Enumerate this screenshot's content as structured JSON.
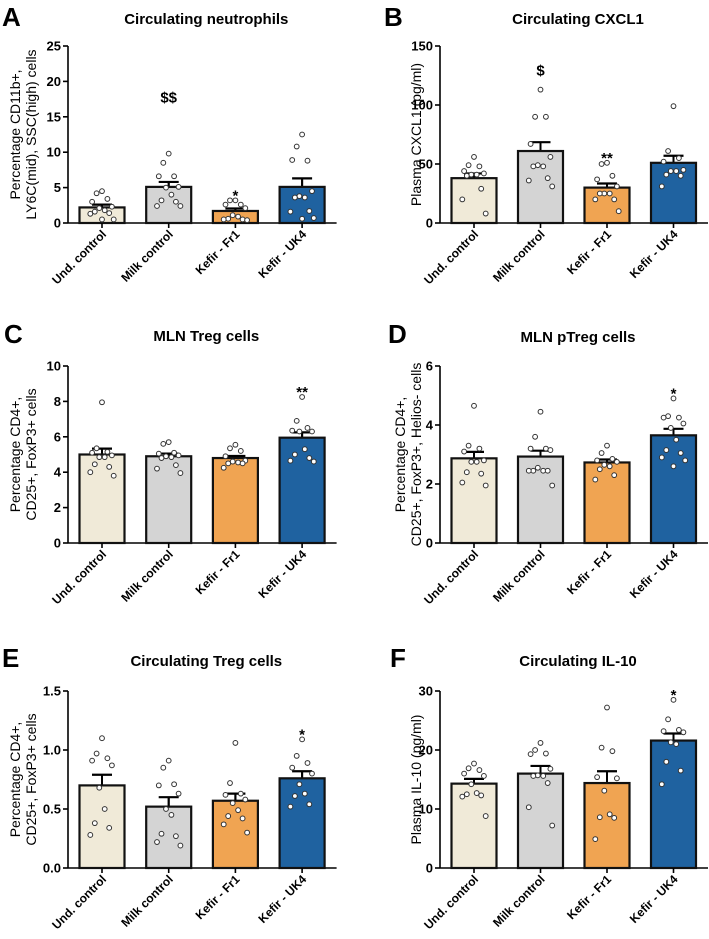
{
  "chart_data": [
    {
      "type": "bar",
      "panel": "A",
      "title": "Circulating neutrophils",
      "ylabel": [
        "Percentage CD11b+,",
        "LY6C(mid), SSC(high) cells"
      ],
      "xlabel": "",
      "ylim": [
        0,
        25
      ],
      "yticks": [
        0,
        5,
        10,
        15,
        20,
        25
      ],
      "categories": [
        "Und. control",
        "Milk control",
        "Kefir - Fr1",
        "Kefir - UK4"
      ],
      "values": [
        2.2,
        5.1,
        1.7,
        5.1
      ],
      "sem": [
        0.4,
        0.7,
        0.35,
        1.2
      ],
      "points": [
        [
          4.5,
          4.2,
          3.4,
          3.0,
          2.3,
          2.1,
          1.8,
          1.6,
          1.4,
          1.3,
          0.5,
          0.5
        ],
        [
          9.8,
          8.5,
          6.6,
          6.6,
          5.1,
          5.0,
          4.0,
          3.2,
          3.0,
          2.4,
          2.4
        ],
        [
          3.2,
          3.2,
          2.6,
          2.6,
          2.1,
          1.1,
          0.9,
          0.6,
          0.5,
          0.5,
          0.4
        ],
        [
          12.5,
          10.8,
          8.8,
          8.9,
          4.5,
          3.8,
          3.6,
          3.6,
          1.7,
          1.6,
          0.7,
          0.6
        ]
      ],
      "annotations": [
        "",
        "$$",
        "*",
        ""
      ],
      "colors": [
        "#F0EAD8",
        "#D4D4D4",
        "#F0A452",
        "#1F62A0"
      ],
      "grid": false
    },
    {
      "type": "bar",
      "panel": "B",
      "title": "Circulating CXCL1",
      "ylabel": [
        "Plasma CXCL1 (pg/ml)"
      ],
      "xlabel": "",
      "ylim": [
        0,
        150
      ],
      "yticks": [
        0,
        50,
        100,
        150
      ],
      "categories": [
        "Und. control",
        "Milk control",
        "Kefir - Fr1",
        "Kefir - UK4"
      ],
      "values": [
        38,
        61,
        30,
        51
      ],
      "sem": [
        4,
        7.5,
        3.5,
        6
      ],
      "points": [
        [
          56,
          49,
          48,
          44,
          42,
          41,
          41,
          40,
          29,
          20,
          8
        ],
        [
          113,
          90,
          90,
          67,
          56,
          49,
          48,
          48,
          38,
          36,
          31
        ],
        [
          51,
          50,
          40,
          37,
          31,
          25,
          25,
          25,
          20,
          20,
          10
        ],
        [
          99,
          61,
          55,
          52,
          45,
          44,
          44,
          41,
          40,
          31
        ]
      ],
      "annotations": [
        "",
        "$",
        "**",
        ""
      ],
      "colors": [
        "#F0EAD8",
        "#D4D4D4",
        "#F0A452",
        "#1F62A0"
      ],
      "grid": false
    },
    {
      "type": "bar",
      "panel": "C",
      "title": "MLN Treg cells",
      "ylabel": [
        "Percentage CD4+,",
        "CD25+, FoxP3+ cells"
      ],
      "xlabel": "",
      "ylim": [
        0,
        10
      ],
      "yticks": [
        0,
        2,
        4,
        6,
        8,
        10
      ],
      "categories": [
        "Und. control",
        "Milk control",
        "Kefir - Fr1",
        "Kefir - UK4"
      ],
      "values": [
        5.0,
        4.9,
        4.8,
        5.95
      ],
      "sem": [
        0.33,
        0.15,
        0.12,
        0.3
      ],
      "points": [
        [
          7.95,
          5.35,
          5.15,
          5.1,
          4.95,
          4.85,
          4.85,
          4.45,
          4.3,
          4.0,
          3.8
        ],
        [
          5.7,
          5.6,
          5.1,
          5.05,
          4.95,
          4.9,
          4.85,
          4.8,
          4.4,
          4.2,
          3.95
        ],
        [
          5.55,
          5.35,
          5.2,
          4.9,
          4.65,
          4.6,
          4.55,
          4.5,
          4.5,
          4.25
        ],
        [
          8.25,
          6.9,
          6.5,
          6.35,
          6.3,
          6.3,
          5.3,
          5.0,
          4.8,
          4.65,
          4.6
        ]
      ],
      "annotations": [
        "",
        "",
        "",
        "**"
      ],
      "colors": [
        "#F0EAD8",
        "#D4D4D4",
        "#F0A452",
        "#1F62A0"
      ],
      "grid": false
    },
    {
      "type": "bar",
      "panel": "D",
      "title": "MLN pTreg cells",
      "ylabel": [
        "Percentage CD4+,",
        "CD25+, FoxP3+, Helios- cells"
      ],
      "xlabel": "",
      "ylim": [
        0,
        6
      ],
      "yticks": [
        0,
        2,
        4,
        6
      ],
      "categories": [
        "Und. control",
        "Milk control",
        "Kefir - Fr1",
        "Kefir - UK4"
      ],
      "values": [
        2.87,
        2.93,
        2.73,
        3.65
      ],
      "sem": [
        0.22,
        0.2,
        0.1,
        0.22
      ],
      "points": [
        [
          4.65,
          3.3,
          3.2,
          3.1,
          2.8,
          2.75,
          2.75,
          2.4,
          2.35,
          2.05,
          1.95
        ],
        [
          4.45,
          3.6,
          3.2,
          3.2,
          3.15,
          2.55,
          2.45,
          2.45,
          2.45,
          2.45,
          1.95
        ],
        [
          3.3,
          3.05,
          2.85,
          2.8,
          2.75,
          2.65,
          2.6,
          2.5,
          2.3,
          2.15
        ],
        [
          4.9,
          4.3,
          4.25,
          4.25,
          4.05,
          3.9,
          3.5,
          3.15,
          3.05,
          2.9,
          2.8,
          2.6
        ]
      ],
      "annotations": [
        "",
        "",
        "",
        "*"
      ],
      "colors": [
        "#F0EAD8",
        "#D4D4D4",
        "#F0A452",
        "#1F62A0"
      ],
      "grid": false
    },
    {
      "type": "bar",
      "panel": "E",
      "title": "Circulating Treg cells",
      "ylabel": [
        "Percentage CD4+,",
        "CD25+, FoxP3+ cells"
      ],
      "xlabel": "",
      "ylim": [
        0,
        1.5
      ],
      "yticks": [
        "0.0",
        "0.5",
        "1.0",
        "1.5"
      ],
      "categories": [
        "Und. control",
        "Milk control",
        "Kefir - Fr1",
        "Kefir - UK4"
      ],
      "values": [
        0.7,
        0.52,
        0.57,
        0.76
      ],
      "sem": [
        0.09,
        0.08,
        0.06,
        0.06
      ],
      "points": [
        [
          1.1,
          0.97,
          0.93,
          0.91,
          0.87,
          0.68,
          0.5,
          0.38,
          0.34,
          0.28
        ],
        [
          0.91,
          0.85,
          0.71,
          0.7,
          0.63,
          0.5,
          0.45,
          0.29,
          0.27,
          0.22,
          0.19
        ],
        [
          1.06,
          0.72,
          0.63,
          0.62,
          0.58,
          0.55,
          0.49,
          0.44,
          0.42,
          0.37,
          0.3
        ],
        [
          1.09,
          0.95,
          0.89,
          0.85,
          0.8,
          0.71,
          0.63,
          0.61,
          0.54,
          0.52
        ]
      ],
      "annotations": [
        "",
        "",
        "",
        "*"
      ],
      "colors": [
        "#F0EAD8",
        "#D4D4D4",
        "#F0A452",
        "#1F62A0"
      ],
      "grid": false
    },
    {
      "type": "bar",
      "panel": "F",
      "title": "Circulating IL-10",
      "ylabel": [
        "Plasma IL-10 (pg/ml)"
      ],
      "xlabel": "",
      "ylim": [
        0,
        30
      ],
      "yticks": [
        0,
        10,
        20,
        30
      ],
      "categories": [
        "Und. control",
        "Milk control",
        "Kefir - Fr1",
        "Kefir - UK4"
      ],
      "values": [
        14.3,
        16.0,
        14.4,
        21.6
      ],
      "sem": [
        0.8,
        1.3,
        2.0,
        1.2
      ],
      "points": [
        [
          17.7,
          16.9,
          16.6,
          16.0,
          15.6,
          14.2,
          12.7,
          12.5,
          12.3,
          12.1,
          8.8
        ],
        [
          21.2,
          20.0,
          19.4,
          19.3,
          16.8,
          15.7,
          15.6,
          15.6,
          14.4,
          10.3,
          7.2
        ],
        [
          27.2,
          20.4,
          19.8,
          15.4,
          15.2,
          13.1,
          9.1,
          8.6,
          8.5,
          4.9
        ],
        [
          28.5,
          25.2,
          23.4,
          23.2,
          23.0,
          21.3,
          21.0,
          18.0,
          16.5,
          14.2
        ]
      ],
      "annotations": [
        "",
        "",
        "",
        "*"
      ],
      "colors": [
        "#F0EAD8",
        "#D4D4D4",
        "#F0A452",
        "#1F62A0"
      ],
      "grid": false
    }
  ]
}
